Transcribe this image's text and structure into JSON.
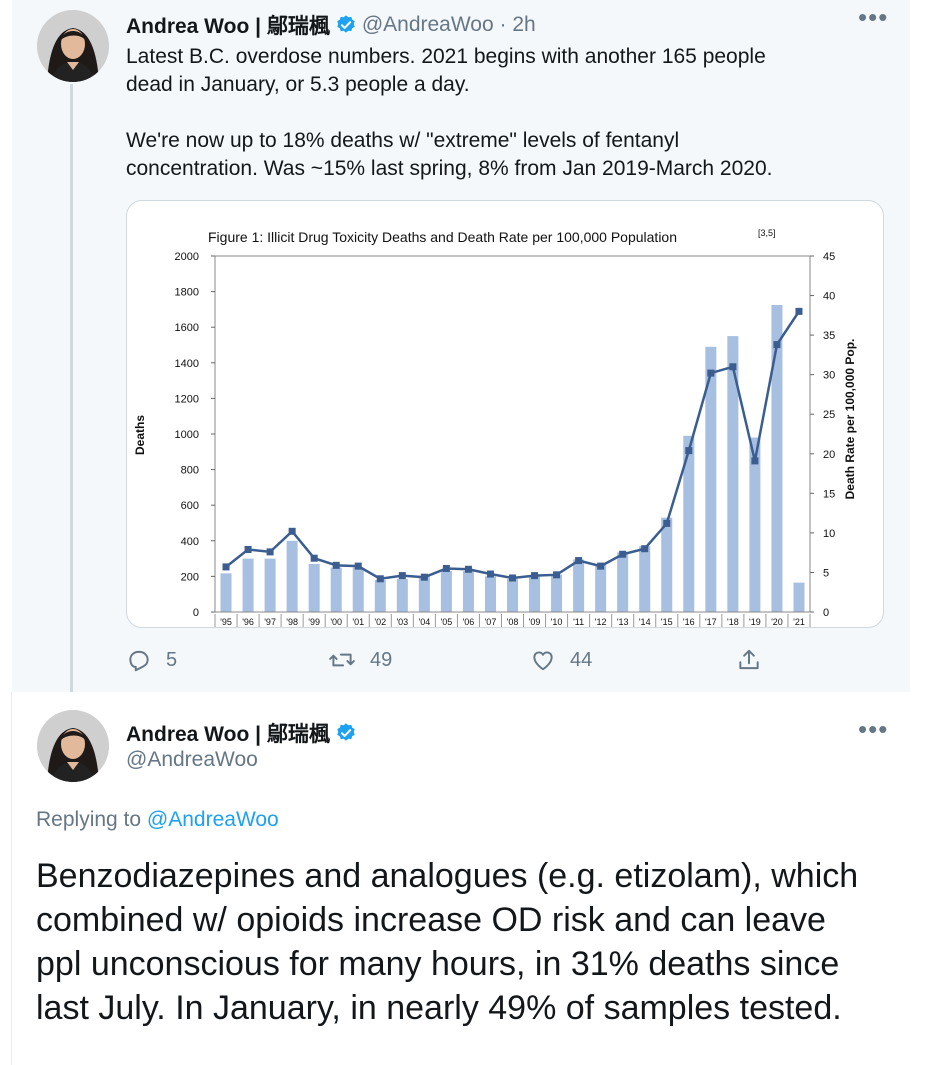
{
  "tweet1": {
    "display_name": "Andrea Woo | 鄔瑞楓",
    "handle_time": "@AndreaWoo · 2h",
    "text": "Latest B.C. overdose numbers. 2021 begins with another 165 people\ndead in January, or 5.3 people a day.\n\nWe're now up to 18% deaths w/ \"extreme\" levels of fentanyl\nconcentration. Was ~15% last spring, 8% from Jan 2019-March 2020.",
    "more_icon": "more-horizontal-icon",
    "actions": {
      "reply_count": "5",
      "retweet_count": "49",
      "like_count": "44"
    }
  },
  "tweet2": {
    "display_name": "Andrea Woo | 鄔瑞楓",
    "handle": "@AndreaWoo",
    "replying_prefix": "Replying to ",
    "replying_handle": "@AndreaWoo",
    "text": "Benzodiazepines and analogues (e.g. etizolam), which\ncombined w/ opioids increase OD risk and can leave\nppl unconscious for many hours, in 31% deaths since\nlast July. In January, in nearly 49% of samples tested."
  },
  "colors": {
    "accent": "#1da1f2",
    "bar": "#a7bfe0",
    "line": "#3b5d8f"
  },
  "chart_data": {
    "type": "bar",
    "title": "Figure 1: Illicit Drug Toxicity Deaths and Death Rate per 100,000 Population",
    "title_sup": "[3,5]",
    "ylabel": "Deaths",
    "y2label": "Death Rate per 100,000 Pop.",
    "ylim": [
      0,
      2000
    ],
    "y2lim": [
      0,
      45
    ],
    "yticks": [
      "0",
      "200",
      "400",
      "600",
      "800",
      "1000",
      "1200",
      "1400",
      "1600",
      "1800",
      "2000"
    ],
    "y2ticks": [
      "0",
      "5",
      "10",
      "15",
      "20",
      "25",
      "30",
      "35",
      "40",
      "45"
    ],
    "categories": [
      "'95",
      "'96",
      "'97",
      "'98",
      "'99",
      "'00",
      "'01",
      "'02",
      "'03",
      "'04",
      "'05",
      "'06",
      "'07",
      "'08",
      "'09",
      "'10",
      "'11",
      "'12",
      "'13",
      "'14",
      "'15",
      "'16",
      "'17",
      "'18",
      "'19",
      "'20",
      "'21"
    ],
    "series": [
      {
        "axis": "left",
        "kind": "bar",
        "values": [
          217,
          300,
          300,
          400,
          270,
          250,
          250,
          180,
          185,
          200,
          230,
          230,
          200,
          185,
          200,
          210,
          295,
          270,
          335,
          370,
          530,
          990,
          1490,
          1550,
          980,
          1725,
          165
        ]
      },
      {
        "axis": "right",
        "kind": "line",
        "values": [
          5.7,
          7.9,
          7.6,
          10.2,
          6.8,
          5.9,
          5.8,
          4.2,
          4.6,
          4.4,
          5.5,
          5.4,
          4.8,
          4.3,
          4.6,
          4.7,
          6.5,
          5.8,
          7.3,
          8.0,
          11.2,
          20.4,
          30.2,
          31.0,
          19.1,
          33.8,
          38.0
        ]
      }
    ]
  }
}
